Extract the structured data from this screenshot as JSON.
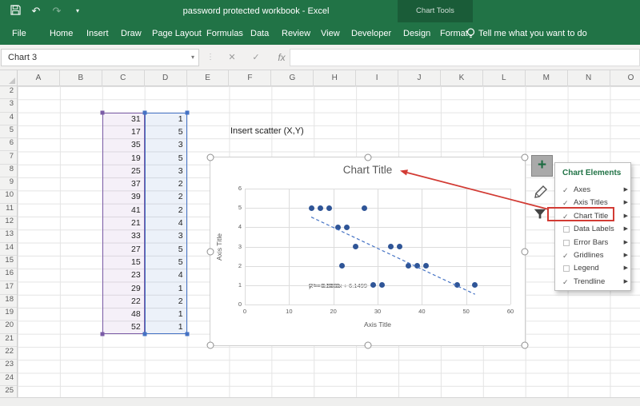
{
  "colors": {
    "excel_green": "#217346",
    "contextual_green": "#1a5c38",
    "series_blue": "#2f5597",
    "trendline_blue": "#4472c4",
    "range_purple": "#7a5ba6",
    "range_blue": "#4472c4",
    "annotation_red": "#d23b34"
  },
  "title_bar": {
    "title": "password protected workbook - Excel",
    "contextual_label": "Chart Tools"
  },
  "quick_access": {
    "save": "",
    "undo": "↶",
    "redo": "↷",
    "customize": "▾"
  },
  "ribbon": {
    "tabs": [
      "File",
      "Home",
      "Insert",
      "Draw",
      "Page Layout",
      "Formulas",
      "Data",
      "Review",
      "View",
      "Developer"
    ],
    "contextual_tabs": [
      "Design",
      "Format"
    ],
    "tell_me": "Tell me what you want to do"
  },
  "formula_bar": {
    "name_box_value": "Chart 3",
    "cancel": "✕",
    "enter": "✓",
    "fx_label": "fx",
    "name_box_caret": "▾",
    "divider": "⋮"
  },
  "sheet": {
    "columns": [
      "A",
      "B",
      "C",
      "D",
      "E",
      "F",
      "G",
      "H",
      "I",
      "J",
      "K",
      "L",
      "M",
      "N",
      "O"
    ],
    "first_row": 2,
    "last_row": 25,
    "note_text": "Insert scatter (X,Y)",
    "data_start_row": 4,
    "data_columns": [
      "C",
      "D"
    ],
    "data": [
      [
        31,
        1
      ],
      [
        17,
        5
      ],
      [
        35,
        3
      ],
      [
        19,
        5
      ],
      [
        25,
        3
      ],
      [
        37,
        2
      ],
      [
        39,
        2
      ],
      [
        41,
        2
      ],
      [
        21,
        4
      ],
      [
        33,
        3
      ],
      [
        27,
        5
      ],
      [
        15,
        5
      ],
      [
        23,
        4
      ],
      [
        29,
        1
      ],
      [
        22,
        2
      ],
      [
        48,
        1
      ],
      [
        52,
        1
      ]
    ]
  },
  "chart_data": {
    "type": "scatter",
    "title": "Chart Title",
    "xlabel": "Axis Title",
    "ylabel": "Axis Title",
    "xlim": [
      0,
      60
    ],
    "ylim": [
      0,
      6
    ],
    "xticks": [
      0,
      10,
      20,
      30,
      40,
      50,
      60
    ],
    "yticks": [
      0,
      1,
      2,
      3,
      4,
      5,
      6
    ],
    "grid": true,
    "legend": false,
    "points": [
      [
        31,
        1
      ],
      [
        17,
        5
      ],
      [
        35,
        3
      ],
      [
        19,
        5
      ],
      [
        25,
        3
      ],
      [
        37,
        2
      ],
      [
        39,
        2
      ],
      [
        41,
        2
      ],
      [
        21,
        4
      ],
      [
        33,
        3
      ],
      [
        27,
        5
      ],
      [
        15,
        5
      ],
      [
        23,
        4
      ],
      [
        29,
        1
      ],
      [
        22,
        2
      ],
      [
        48,
        1
      ],
      [
        52,
        1
      ]
    ],
    "trendline": {
      "slope": -0.1081,
      "intercept": 6.1499,
      "x_start": 15,
      "x_end": 52,
      "equation": "y = -0.1081x + 6.1499",
      "r_squared": "R² = 0.5681"
    }
  },
  "chart_elements_panel": {
    "title": "Chart Elements",
    "check_glyph": "✓",
    "arrow_glyph": "▶",
    "items": [
      {
        "label": "Axes",
        "checked": true,
        "highlighted": false
      },
      {
        "label": "Axis Titles",
        "checked": true,
        "highlighted": false
      },
      {
        "label": "Chart Title",
        "checked": true,
        "highlighted": true
      },
      {
        "label": "Data Labels",
        "checked": false,
        "highlighted": false
      },
      {
        "label": "Error Bars",
        "checked": false,
        "highlighted": false
      },
      {
        "label": "Gridlines",
        "checked": true,
        "highlighted": false
      },
      {
        "label": "Legend",
        "checked": false,
        "highlighted": false
      },
      {
        "label": "Trendline",
        "checked": true,
        "highlighted": false
      }
    ]
  }
}
